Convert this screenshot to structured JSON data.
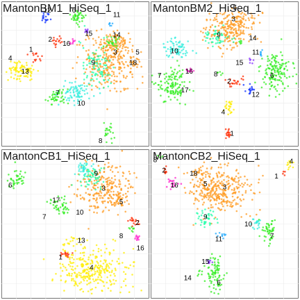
{
  "palette": {
    "1": "#ff2a00",
    "2": "#ff2a00",
    "3": "#ff9a1f",
    "4": "#ffee00",
    "5": "#ff9a1f",
    "6": "#33ee22",
    "7": "#33ee22",
    "8": "#33ee22",
    "9": "#22ffaa",
    "10": "#33eedd",
    "11": "#22aaff",
    "12": "#1133ff",
    "13": "#ffee00",
    "14": "#33ee22",
    "15": "#8833ff",
    "16": "#ff22cc",
    "17": "#33ee22",
    "18": "#ff9a1f"
  },
  "chart_data": [
    {
      "type": "scatter",
      "title": "MantonBM1_HiSeq_1",
      "xlim": [
        0,
        100
      ],
      "ylim": [
        0,
        100
      ],
      "clusters": [
        {
          "id": "3",
          "x": 73,
          "y": 58,
          "sx": 9,
          "sy": 10,
          "n": 260
        },
        {
          "id": "9",
          "x": 64,
          "y": 55,
          "sx": 5,
          "sy": 8,
          "n": 90
        },
        {
          "id": "5",
          "x": 77,
          "y": 70,
          "sx": 6,
          "sy": 4,
          "n": 80
        },
        {
          "id": "14",
          "x": 75,
          "y": 72,
          "sx": 3,
          "sy": 2,
          "n": 25
        },
        {
          "id": "18",
          "x": 90,
          "y": 57,
          "sx": 2,
          "sy": 2,
          "n": 14
        },
        {
          "id": "10",
          "x": 50,
          "y": 37,
          "sx": 5,
          "sy": 4,
          "n": 80
        },
        {
          "id": "7",
          "x": 40,
          "y": 36,
          "sx": 3,
          "sy": 3,
          "n": 30
        },
        {
          "id": "17",
          "x": 35,
          "y": 32,
          "sx": 2,
          "sy": 2,
          "n": 14
        },
        {
          "id": "4",
          "x": 12,
          "y": 53,
          "sx": 4,
          "sy": 3,
          "n": 70
        },
        {
          "id": "13",
          "x": 18,
          "y": 51,
          "sx": 2,
          "sy": 2,
          "n": 18
        },
        {
          "id": "1",
          "x": 24,
          "y": 61,
          "sx": 2,
          "sy": 2,
          "n": 14
        },
        {
          "id": "2",
          "x": 37,
          "y": 73,
          "sx": 2,
          "sy": 2,
          "n": 16
        },
        {
          "id": "16",
          "x": 48,
          "y": 72,
          "sx": 1,
          "sy": 1,
          "n": 8
        },
        {
          "id": "12",
          "x": 30,
          "y": 89,
          "sx": 2,
          "sy": 2,
          "n": 18
        },
        {
          "id": "6",
          "x": 52,
          "y": 88,
          "sx": 3,
          "sy": 3,
          "n": 40
        },
        {
          "id": "15",
          "x": 58,
          "y": 79,
          "sx": 1,
          "sy": 1,
          "n": 8
        },
        {
          "id": "11",
          "x": 74,
          "y": 85,
          "sx": 1,
          "sy": 1,
          "n": 6
        },
        {
          "id": "8",
          "x": 71,
          "y": 9,
          "sx": 2,
          "sy": 3,
          "n": 22
        }
      ],
      "labels": [
        {
          "text": "12",
          "x": 31,
          "y": 94
        },
        {
          "text": "6",
          "x": 49,
          "y": 94
        },
        {
          "text": "11",
          "x": 78,
          "y": 91
        },
        {
          "text": "15",
          "x": 59,
          "y": 78
        },
        {
          "text": "2",
          "x": 33,
          "y": 74
        },
        {
          "text": "16",
          "x": 44,
          "y": 71
        },
        {
          "text": "14",
          "x": 78,
          "y": 77
        },
        {
          "text": "5",
          "x": 92,
          "y": 65
        },
        {
          "text": "1",
          "x": 20,
          "y": 67
        },
        {
          "text": "4",
          "x": 6,
          "y": 61
        },
        {
          "text": "3",
          "x": 77,
          "y": 65
        },
        {
          "text": "18",
          "x": 89,
          "y": 58
        },
        {
          "text": "9",
          "x": 62,
          "y": 58
        },
        {
          "text": "13",
          "x": 16,
          "y": 52
        },
        {
          "text": "7",
          "x": 38,
          "y": 37
        },
        {
          "text": "10",
          "x": 54,
          "y": 30
        },
        {
          "text": "8",
          "x": 67,
          "y": 4
        }
      ]
    },
    {
      "type": "scatter",
      "title": "MantonBM2_HiSeq_1",
      "xlim": [
        0,
        100
      ],
      "ylim": [
        0,
        100
      ],
      "clusters": [
        {
          "id": "3",
          "x": 53,
          "y": 80,
          "sx": 9,
          "sy": 6,
          "n": 200
        },
        {
          "id": "9",
          "x": 45,
          "y": 76,
          "sx": 4,
          "sy": 3,
          "n": 50
        },
        {
          "id": "5",
          "x": 56,
          "y": 88,
          "sx": 5,
          "sy": 3,
          "n": 50
        },
        {
          "id": "10",
          "x": 18,
          "y": 68,
          "sx": 5,
          "sy": 4,
          "n": 70
        },
        {
          "id": "14",
          "x": 61,
          "y": 72,
          "sx": 1,
          "sy": 1,
          "n": 6
        },
        {
          "id": "11",
          "x": 74,
          "y": 64,
          "sx": 1,
          "sy": 1,
          "n": 8
        },
        {
          "id": "15",
          "x": 68,
          "y": 59,
          "sx": 1,
          "sy": 1,
          "n": 6
        },
        {
          "id": "7",
          "x": 14,
          "y": 43,
          "sx": 5,
          "sy": 7,
          "n": 110
        },
        {
          "id": "17",
          "x": 18,
          "y": 38,
          "sx": 2,
          "sy": 2,
          "n": 18
        },
        {
          "id": "16",
          "x": 27,
          "y": 53,
          "sx": 2,
          "sy": 1,
          "n": 12
        },
        {
          "id": "6",
          "x": 84,
          "y": 51,
          "sx": 5,
          "sy": 6,
          "n": 150
        },
        {
          "id": "2",
          "x": 59,
          "y": 45,
          "sx": 3,
          "sy": 2,
          "n": 20
        },
        {
          "id": "12",
          "x": 67,
          "y": 39,
          "sx": 2,
          "sy": 2,
          "n": 16
        },
        {
          "id": "8",
          "x": 47,
          "y": 51,
          "sx": 1,
          "sy": 1,
          "n": 6
        },
        {
          "id": "4",
          "x": 53,
          "y": 27,
          "sx": 2,
          "sy": 3,
          "n": 26
        },
        {
          "id": "1",
          "x": 52,
          "y": 9,
          "sx": 1,
          "sy": 2,
          "n": 16
        }
      ],
      "labels": [
        {
          "text": "3",
          "x": 56,
          "y": 88
        },
        {
          "text": "5",
          "x": 57,
          "y": 96
        },
        {
          "text": "9",
          "x": 46,
          "y": 77
        },
        {
          "text": "14",
          "x": 69,
          "y": 75
        },
        {
          "text": "11",
          "x": 71,
          "y": 65
        },
        {
          "text": "10",
          "x": 16,
          "y": 66
        },
        {
          "text": "15",
          "x": 60,
          "y": 58
        },
        {
          "text": "16",
          "x": 26,
          "y": 52
        },
        {
          "text": "7",
          "x": 6,
          "y": 49
        },
        {
          "text": "6",
          "x": 82,
          "y": 49
        },
        {
          "text": "8",
          "x": 44,
          "y": 50
        },
        {
          "text": "2",
          "x": 53,
          "y": 45
        },
        {
          "text": "17",
          "x": 23,
          "y": 39
        },
        {
          "text": "12",
          "x": 71,
          "y": 36
        },
        {
          "text": "4",
          "x": 49,
          "y": 24
        },
        {
          "text": "1",
          "x": 55,
          "y": 9
        }
      ]
    },
    {
      "type": "scatter",
      "title": "MantonCB1_HiSeq_1",
      "xlim": [
        0,
        100
      ],
      "ylim": [
        0,
        100
      ],
      "clusters": [
        {
          "id": "3",
          "x": 69,
          "y": 74,
          "sx": 9,
          "sy": 8,
          "n": 230
        },
        {
          "id": "9",
          "x": 60,
          "y": 83,
          "sx": 4,
          "sy": 4,
          "n": 60
        },
        {
          "id": "5",
          "x": 80,
          "y": 66,
          "sx": 3,
          "sy": 3,
          "n": 40
        },
        {
          "id": "6",
          "x": 11,
          "y": 80,
          "sx": 3,
          "sy": 3,
          "n": 40
        },
        {
          "id": "10",
          "x": 55,
          "y": 88,
          "sx": 3,
          "sy": 3,
          "n": 30
        },
        {
          "id": "7",
          "x": 38,
          "y": 64,
          "sx": 3,
          "sy": 3,
          "n": 30
        },
        {
          "id": "17",
          "x": 42,
          "y": 60,
          "sx": 2,
          "sy": 2,
          "n": 14
        },
        {
          "id": "2",
          "x": 90,
          "y": 52,
          "sx": 2,
          "sy": 2,
          "n": 16
        },
        {
          "id": "8",
          "x": 88,
          "y": 47,
          "sx": 1,
          "sy": 1,
          "n": 8
        },
        {
          "id": "16",
          "x": 92,
          "y": 41,
          "sx": 1,
          "sy": 1,
          "n": 10
        },
        {
          "id": "4",
          "x": 62,
          "y": 20,
          "sx": 12,
          "sy": 7,
          "n": 300
        },
        {
          "id": "13",
          "x": 47,
          "y": 38,
          "sx": 2,
          "sy": 2,
          "n": 16
        },
        {
          "id": "1",
          "x": 43,
          "y": 30,
          "sx": 2,
          "sy": 1,
          "n": 14
        }
      ],
      "labels": [
        {
          "text": "9",
          "x": 64,
          "y": 84
        },
        {
          "text": "3",
          "x": 69,
          "y": 74
        },
        {
          "text": "6",
          "x": 6,
          "y": 76
        },
        {
          "text": "17",
          "x": 37,
          "y": 66
        },
        {
          "text": "5",
          "x": 81,
          "y": 65
        },
        {
          "text": "10",
          "x": 53,
          "y": 58
        },
        {
          "text": "7",
          "x": 29,
          "y": 55
        },
        {
          "text": "2",
          "x": 92,
          "y": 51
        },
        {
          "text": "8",
          "x": 81,
          "y": 42
        },
        {
          "text": "13",
          "x": 54,
          "y": 39
        },
        {
          "text": "16",
          "x": 94,
          "y": 34
        },
        {
          "text": "1",
          "x": 40,
          "y": 28
        },
        {
          "text": "4",
          "x": 61,
          "y": 21
        }
      ]
    },
    {
      "type": "scatter",
      "title": "MantonCB2_HiSeq_1",
      "xlim": [
        0,
        100
      ],
      "ylim": [
        0,
        100
      ],
      "clusters": [
        {
          "id": "3",
          "x": 48,
          "y": 72,
          "sx": 10,
          "sy": 8,
          "n": 260
        },
        {
          "id": "5",
          "x": 39,
          "y": 73,
          "sx": 6,
          "sy": 6,
          "n": 80
        },
        {
          "id": "18",
          "x": 33,
          "y": 84,
          "sx": 3,
          "sy": 2,
          "n": 20
        },
        {
          "id": "9",
          "x": 38,
          "y": 53,
          "sx": 3,
          "sy": 3,
          "n": 40
        },
        {
          "id": "10",
          "x": 72,
          "y": 50,
          "sx": 2,
          "sy": 2,
          "n": 20
        },
        {
          "id": "7",
          "x": 80,
          "y": 45,
          "sx": 3,
          "sy": 4,
          "n": 50
        },
        {
          "id": "11",
          "x": 47,
          "y": 42,
          "sx": 2,
          "sy": 2,
          "n": 10
        },
        {
          "id": "6",
          "x": 44,
          "y": 17,
          "sx": 3,
          "sy": 6,
          "n": 80
        },
        {
          "id": "15",
          "x": 40,
          "y": 24,
          "sx": 1,
          "sy": 1,
          "n": 8
        },
        {
          "id": "14",
          "x": 33,
          "y": 17,
          "sx": 1,
          "sy": 1,
          "n": 6
        },
        {
          "id": "4",
          "x": 94,
          "y": 90,
          "sx": 1,
          "sy": 2,
          "n": 12
        },
        {
          "id": "1",
          "x": 90,
          "y": 84,
          "sx": 1,
          "sy": 1,
          "n": 4
        },
        {
          "id": "16",
          "x": 15,
          "y": 78,
          "sx": 2,
          "sy": 2,
          "n": 18
        },
        {
          "id": "2",
          "x": 10,
          "y": 86,
          "sx": 1,
          "sy": 1,
          "n": 8
        },
        {
          "id": "8",
          "x": 6,
          "y": 95,
          "sx": 1,
          "sy": 1,
          "n": 4
        }
      ],
      "labels": [
        {
          "text": "8",
          "x": 3,
          "y": 93
        },
        {
          "text": "2",
          "x": 9,
          "y": 86
        },
        {
          "text": "18",
          "x": 29,
          "y": 84
        },
        {
          "text": "16",
          "x": 16,
          "y": 76
        },
        {
          "text": "5",
          "x": 37,
          "y": 77
        },
        {
          "text": "3",
          "x": 50,
          "y": 75
        },
        {
          "text": "4",
          "x": 95,
          "y": 92
        },
        {
          "text": "1",
          "x": 85,
          "y": 82
        },
        {
          "text": "9",
          "x": 37,
          "y": 55
        },
        {
          "text": "10",
          "x": 66,
          "y": 50
        },
        {
          "text": "7",
          "x": 82,
          "y": 42
        },
        {
          "text": "11",
          "x": 46,
          "y": 40
        },
        {
          "text": "15",
          "x": 37,
          "y": 25
        },
        {
          "text": "14",
          "x": 25,
          "y": 14
        },
        {
          "text": "6",
          "x": 46,
          "y": 11
        }
      ]
    }
  ]
}
